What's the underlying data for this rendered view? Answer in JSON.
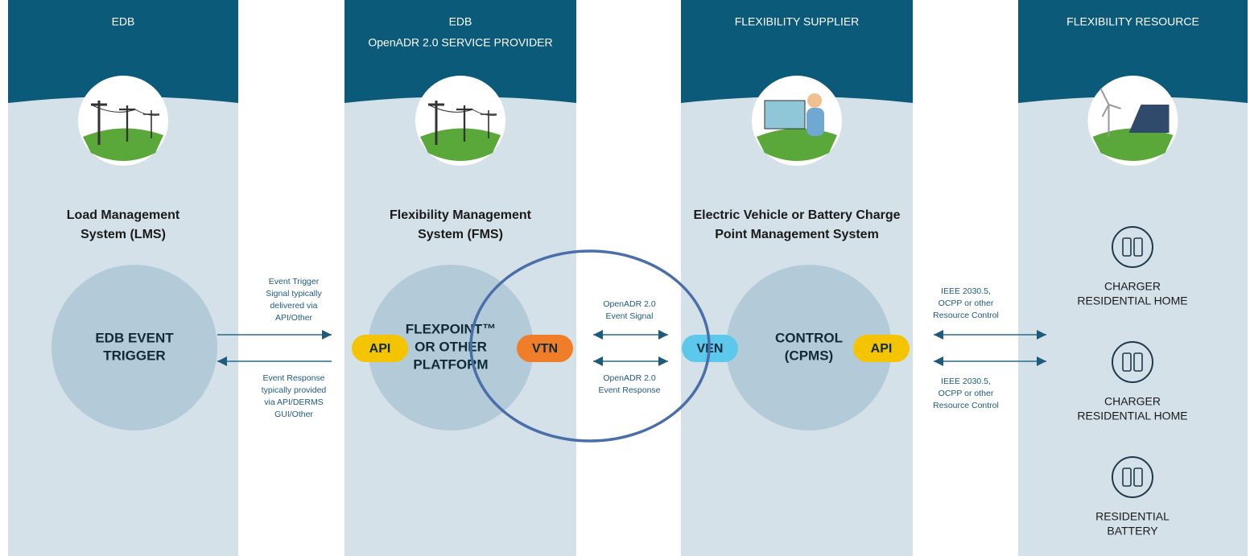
{
  "columns": [
    {
      "header": [
        "EDB"
      ],
      "title": [
        "Load Management",
        "System (LMS)"
      ],
      "circle_label": [
        "EDB EVENT",
        "TRIGGER"
      ]
    },
    {
      "header": [
        "EDB",
        "OpenADR 2.0 SERVICE PROVIDER"
      ],
      "title": [
        "Flexibility Management",
        "System (FMS)"
      ],
      "circle_label": [
        "FLEXPOINT™",
        "OR OTHER",
        "PLATFORM"
      ]
    },
    {
      "header": [
        "FLEXIBILITY SUPPLIER"
      ],
      "title": [
        "Electric Vehicle or Battery Charge",
        "Point Management System"
      ],
      "circle_label": [
        "CONTROL",
        "(CPMS)"
      ]
    },
    {
      "header": [
        "FLEXIBILITY RESOURCE"
      ],
      "resources": [
        [
          "CHARGER",
          "RESIDENTIAL HOME"
        ],
        [
          "CHARGER",
          "RESIDENTIAL HOME"
        ],
        [
          "RESIDENTIAL",
          "BATTERY"
        ]
      ]
    }
  ],
  "badges": [
    "API",
    "VTN",
    "VEN",
    "API"
  ],
  "connectors": [
    {
      "top": [
        "Event Trigger",
        "Signal typically",
        "delivered via",
        "API/Other"
      ],
      "bottom": [
        "Event Response",
        "typically provided",
        "via API/DERMS",
        "GUI/Other"
      ]
    },
    {
      "top": [
        "OpenADR 2.0",
        "Event Signal"
      ],
      "bottom": [
        "OpenADR 2.0",
        "Event Response"
      ]
    },
    {
      "top": [
        "IEEE 2030.5,",
        "OCPP or other",
        "Resource Control"
      ],
      "bottom": [
        "IEEE 2030.5,",
        "OCPP or other",
        "Resource Control"
      ]
    }
  ]
}
